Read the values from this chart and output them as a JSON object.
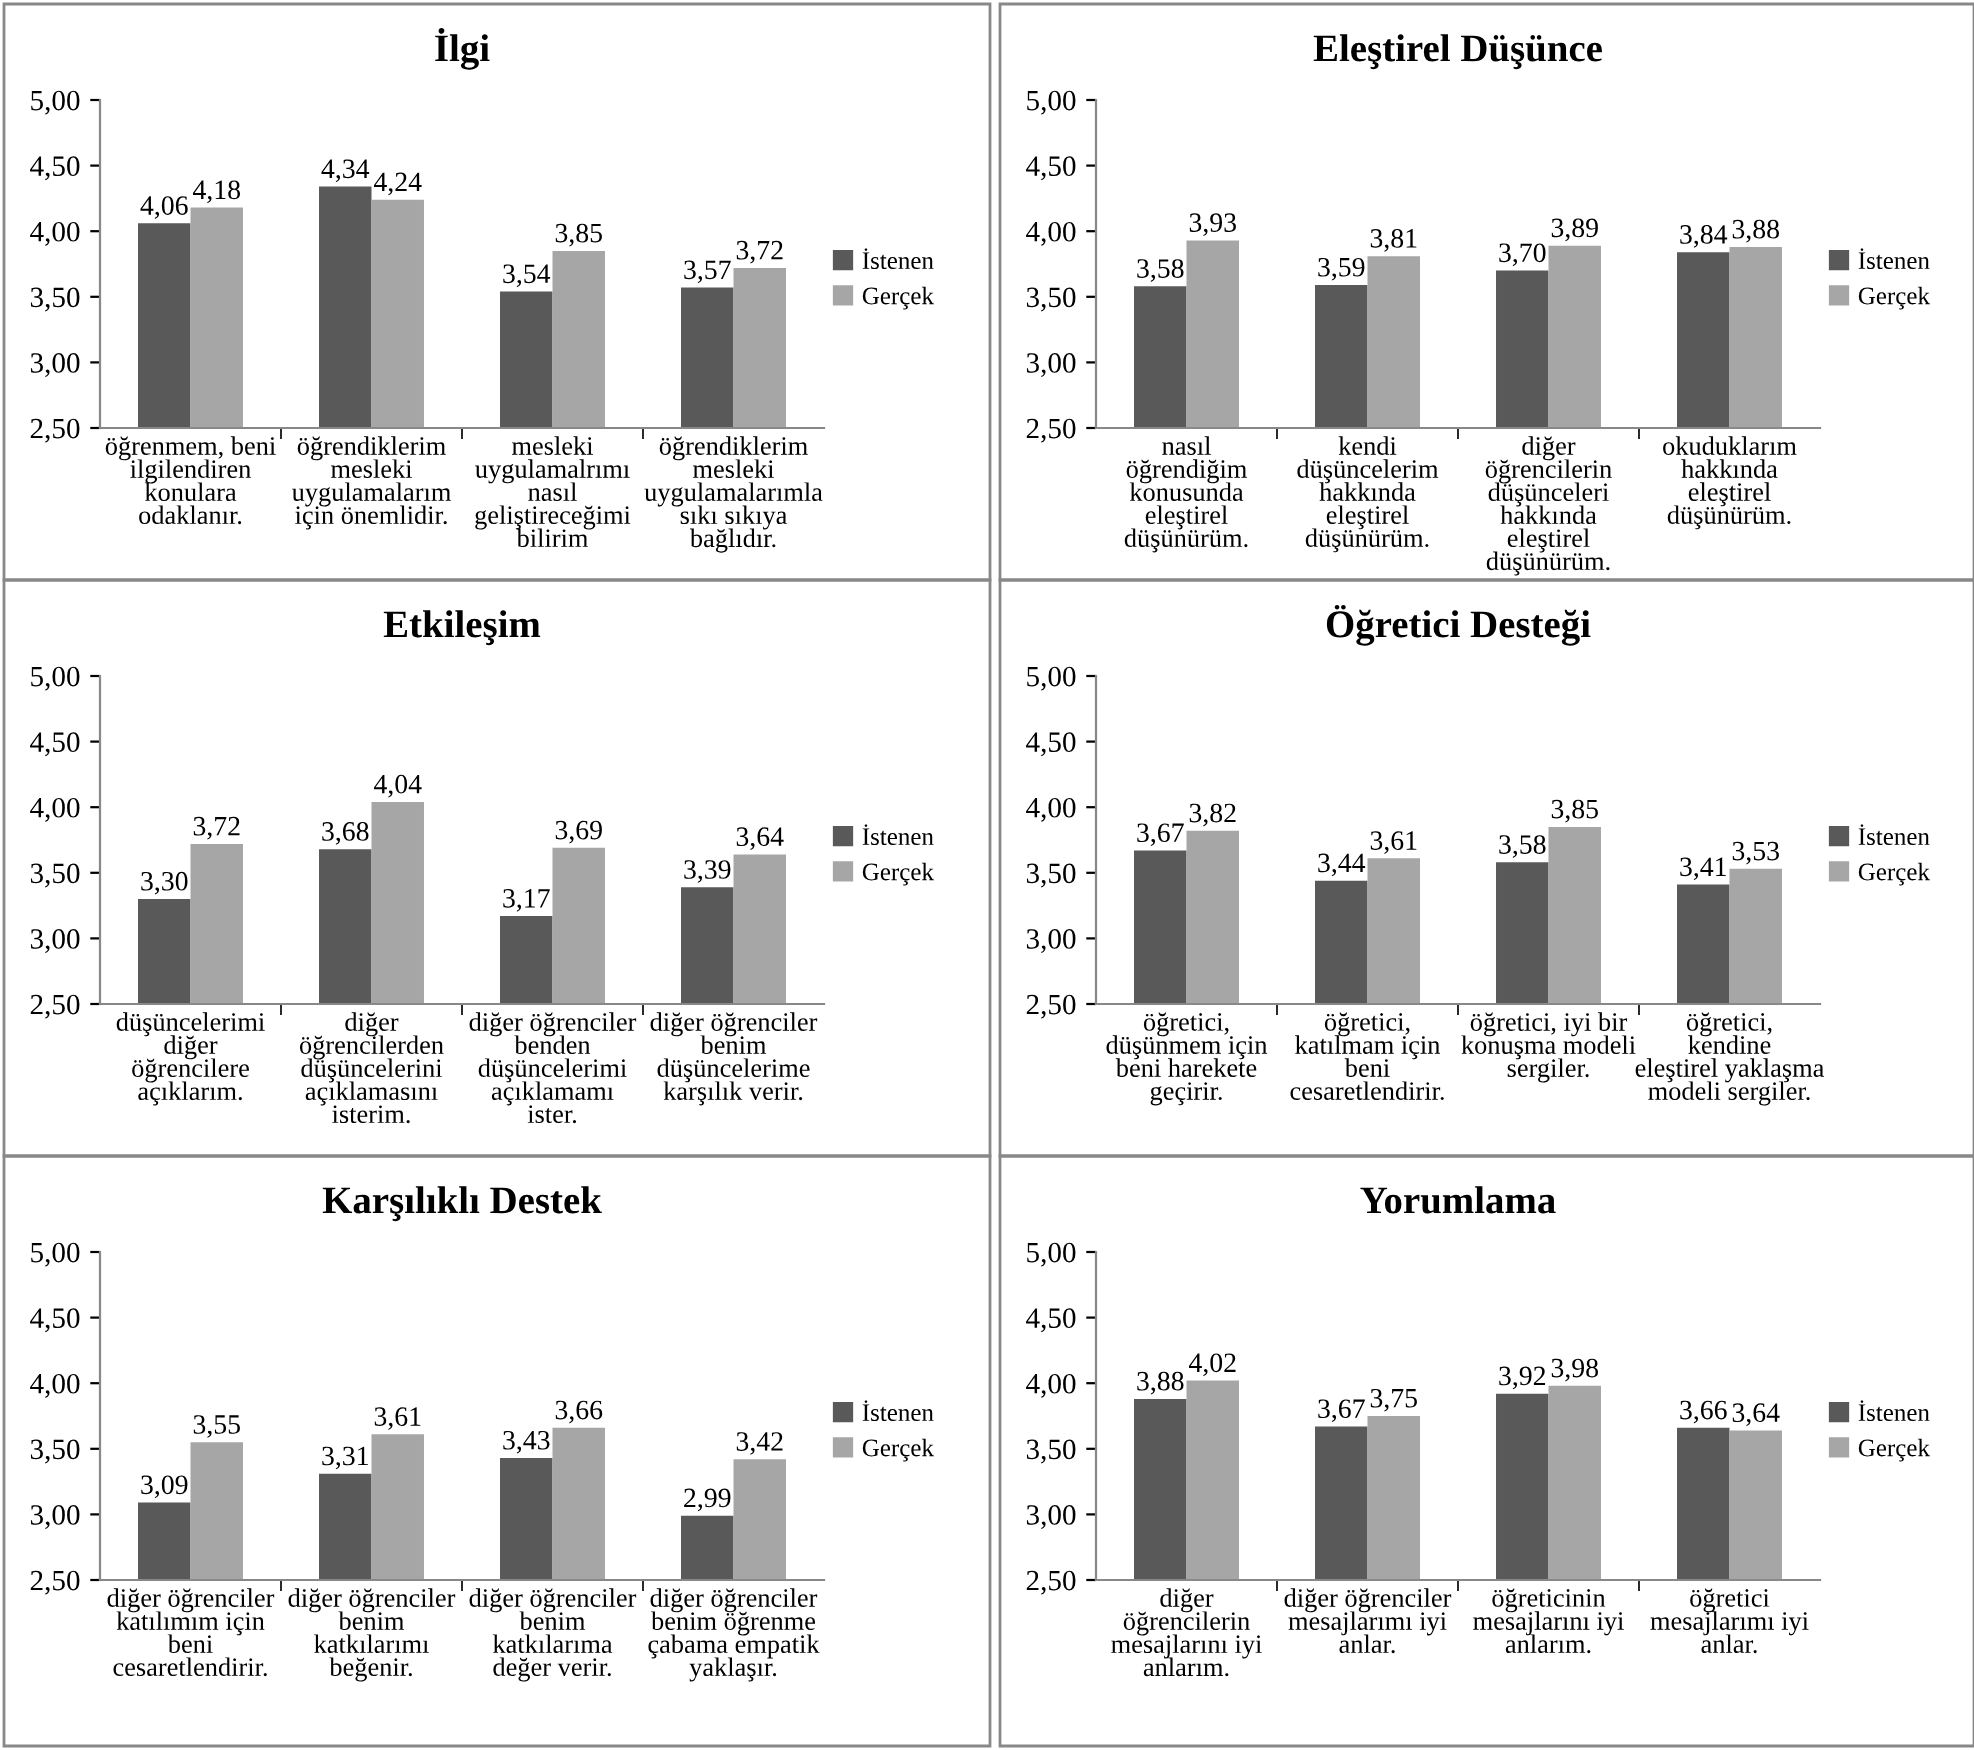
{
  "chart_data": [
    {
      "type": "bar",
      "title": "İlgi",
      "categories": [
        "öğrenmem, beni\nilgilendiren\nkonulara\nodaklanır.",
        "öğrendiklerim\nmesleki\nuygulamalarım\niçin önemlidir.",
        "mesleki\nuygulamalrımı\nnasıl\ngeliştireceğimi\nbilirim",
        "öğrendiklerim\nmesleki\nuygulamalarımla\nsıkı sıkıya\nbağlıdır."
      ],
      "series": [
        {
          "name": "İstenen",
          "color": "#595959",
          "values": [
            4.06,
            4.34,
            3.54,
            3.57
          ],
          "value_labels": [
            "4,06",
            "4,34",
            "3,54",
            "3,57"
          ]
        },
        {
          "name": "Gerçek",
          "color": "#a6a6a6",
          "values": [
            4.18,
            4.24,
            3.85,
            3.72
          ],
          "value_labels": [
            "4,18",
            "4,24",
            "3,85",
            "3,72"
          ]
        }
      ],
      "ylim": [
        2.5,
        5.0
      ],
      "yticks": [
        {
          "value": 2.5,
          "label": "2,50"
        },
        {
          "value": 3.0,
          "label": "3,00"
        },
        {
          "value": 3.5,
          "label": "3,50"
        },
        {
          "value": 4.0,
          "label": "4,00"
        },
        {
          "value": 4.5,
          "label": "4,50"
        },
        {
          "value": 5.0,
          "label": "5,00"
        }
      ],
      "legend": "right",
      "grid": false
    },
    {
      "type": "bar",
      "title": "Eleştirel Düşünce",
      "categories": [
        "nasıl\nöğrendiğim\nkonusunda\neleştirel\ndüşünürüm.",
        "kendi\ndüşüncelerim\nhakkında\neleştirel\ndüşünürüm.",
        "diğer\nöğrencilerin\ndüşünceleri\nhakkında\neleştirel\ndüşünürüm.",
        "okuduklarım\nhakkında\neleştirel\ndüşünürüm."
      ],
      "series": [
        {
          "name": "İstenen",
          "color": "#595959",
          "values": [
            3.58,
            3.59,
            3.7,
            3.84
          ],
          "value_labels": [
            "3,58",
            "3,59",
            "3,70",
            "3,84"
          ]
        },
        {
          "name": "Gerçek",
          "color": "#a6a6a6",
          "values": [
            3.93,
            3.81,
            3.89,
            3.88
          ],
          "value_labels": [
            "3,93",
            "3,81",
            "3,89",
            "3,88"
          ]
        }
      ],
      "ylim": [
        2.5,
        5.0
      ],
      "yticks": [
        {
          "value": 2.5,
          "label": "2,50"
        },
        {
          "value": 3.0,
          "label": "3,00"
        },
        {
          "value": 3.5,
          "label": "3,50"
        },
        {
          "value": 4.0,
          "label": "4,00"
        },
        {
          "value": 4.5,
          "label": "4,50"
        },
        {
          "value": 5.0,
          "label": "5,00"
        }
      ],
      "legend": "right",
      "grid": false
    },
    {
      "type": "bar",
      "title": "Etkileşim",
      "categories": [
        "düşüncelerimi\ndiğer\nöğrencilere\naçıklarım.",
        "diğer\nöğrencilerden\ndüşüncelerini\naçıklamasını\nisterim.",
        "diğer öğrenciler\nbenden\ndüşüncelerimi\naçıklamamı\nister.",
        "diğer öğrenciler\nbenim\ndüşüncelerime\nkarşılık verir."
      ],
      "series": [
        {
          "name": "İstenen",
          "color": "#595959",
          "values": [
            3.3,
            3.68,
            3.17,
            3.39
          ],
          "value_labels": [
            "3,30",
            "3,68",
            "3,17",
            "3,39"
          ]
        },
        {
          "name": "Gerçek",
          "color": "#a6a6a6",
          "values": [
            3.72,
            4.04,
            3.69,
            3.64
          ],
          "value_labels": [
            "3,72",
            "4,04",
            "3,69",
            "3,64"
          ]
        }
      ],
      "ylim": [
        2.5,
        5.0
      ],
      "yticks": [
        {
          "value": 2.5,
          "label": "2,50"
        },
        {
          "value": 3.0,
          "label": "3,00"
        },
        {
          "value": 3.5,
          "label": "3,50"
        },
        {
          "value": 4.0,
          "label": "4,00"
        },
        {
          "value": 4.5,
          "label": "4,50"
        },
        {
          "value": 5.0,
          "label": "5,00"
        }
      ],
      "legend": "right",
      "grid": false
    },
    {
      "type": "bar",
      "title": "Öğretici Desteği",
      "categories": [
        "öğretici,\ndüşünmem için\nbeni harekete\ngeçirir.",
        "öğretici,\nkatılmam için\nbeni\ncesaretlendirir.",
        "öğretici, iyi bir\nkonuşma modeli\nsergiler.",
        "öğretici,\nkendine\neleştirel yaklaşma\nmodeli sergiler."
      ],
      "series": [
        {
          "name": "İstenen",
          "color": "#595959",
          "values": [
            3.67,
            3.44,
            3.58,
            3.41
          ],
          "value_labels": [
            "3,67",
            "3,44",
            "3,58",
            "3,41"
          ]
        },
        {
          "name": "Gerçek",
          "color": "#a6a6a6",
          "values": [
            3.82,
            3.61,
            3.85,
            3.53
          ],
          "value_labels": [
            "3,82",
            "3,61",
            "3,85",
            "3,53"
          ]
        }
      ],
      "ylim": [
        2.5,
        5.0
      ],
      "yticks": [
        {
          "value": 2.5,
          "label": "2,50"
        },
        {
          "value": 3.0,
          "label": "3,00"
        },
        {
          "value": 3.5,
          "label": "3,50"
        },
        {
          "value": 4.0,
          "label": "4,00"
        },
        {
          "value": 4.5,
          "label": "4,50"
        },
        {
          "value": 5.0,
          "label": "5,00"
        }
      ],
      "legend": "right",
      "grid": false
    },
    {
      "type": "bar",
      "title": "Karşılıklı Destek",
      "categories": [
        "diğer öğrenciler\nkatılımım için\nbeni\ncesaretlendirir.",
        "diğer öğrenciler\nbenim\nkatkılarımı\nbeğenir.",
        "diğer öğrenciler\nbenim\nkatkılarıma\ndeğer verir.",
        "diğer öğrenciler\nbenim öğrenme\nçabama empatik\nyaklaşır."
      ],
      "series": [
        {
          "name": "İstenen",
          "color": "#595959",
          "values": [
            3.09,
            3.31,
            3.43,
            2.99
          ],
          "value_labels": [
            "3,09",
            "3,31",
            "3,43",
            "2,99"
          ]
        },
        {
          "name": "Gerçek",
          "color": "#a6a6a6",
          "values": [
            3.55,
            3.61,
            3.66,
            3.42
          ],
          "value_labels": [
            "3,55",
            "3,61",
            "3,66",
            "3,42"
          ]
        }
      ],
      "ylim": [
        2.5,
        5.0
      ],
      "yticks": [
        {
          "value": 2.5,
          "label": "2,50"
        },
        {
          "value": 3.0,
          "label": "3,00"
        },
        {
          "value": 3.5,
          "label": "3,50"
        },
        {
          "value": 4.0,
          "label": "4,00"
        },
        {
          "value": 4.5,
          "label": "4,50"
        },
        {
          "value": 5.0,
          "label": "5,00"
        }
      ],
      "legend": "right",
      "grid": false
    },
    {
      "type": "bar",
      "title": "Yorumlama",
      "categories": [
        "diğer\nöğrencilerin\nmesajlarını iyi\nanlarım.",
        "diğer öğrenciler\nmesajlarımı iyi\nanlar.",
        "öğreticinin\nmesajlarını iyi\nanlarım.",
        "öğretici\nmesajlarımı iyi\nanlar."
      ],
      "series": [
        {
          "name": "İstenen",
          "color": "#595959",
          "values": [
            3.88,
            3.67,
            3.92,
            3.66
          ],
          "value_labels": [
            "3,88",
            "3,67",
            "3,92",
            "3,66"
          ]
        },
        {
          "name": "Gerçek",
          "color": "#a6a6a6",
          "values": [
            4.02,
            3.75,
            3.98,
            3.64
          ],
          "value_labels": [
            "4,02",
            "3,75",
            "3,98",
            "3,64"
          ]
        }
      ],
      "ylim": [
        2.5,
        5.0
      ],
      "yticks": [
        {
          "value": 2.5,
          "label": "2,50"
        },
        {
          "value": 3.0,
          "label": "3,00"
        },
        {
          "value": 3.5,
          "label": "3,50"
        },
        {
          "value": 4.0,
          "label": "4,00"
        },
        {
          "value": 4.5,
          "label": "4,50"
        },
        {
          "value": 5.0,
          "label": "5,00"
        }
      ],
      "legend": "right",
      "grid": false
    }
  ]
}
